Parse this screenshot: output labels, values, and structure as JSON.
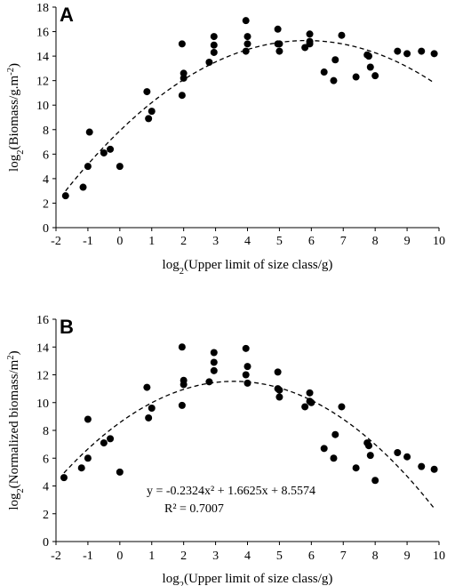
{
  "chart_data": [
    {
      "type": "scatter",
      "panel_label": "A",
      "xlabel": "log2(Upper limit of size class/g)",
      "ylabel": "log2(Biomass/g.m-2)",
      "xlim": [
        -2,
        10
      ],
      "ylim": [
        0,
        18
      ],
      "x_ticks": [
        -2,
        -1,
        0,
        1,
        2,
        3,
        4,
        5,
        6,
        7,
        8,
        9,
        10
      ],
      "y_ticks": [
        0,
        2,
        4,
        6,
        8,
        10,
        12,
        14,
        16,
        18
      ],
      "trendline": {
        "style": "dashed",
        "kind": "quadratic"
      },
      "points": [
        [
          -1.7,
          2.6
        ],
        [
          -1.15,
          3.3
        ],
        [
          -1.0,
          5.0
        ],
        [
          -0.95,
          7.8
        ],
        [
          -0.5,
          6.1
        ],
        [
          -0.3,
          6.4
        ],
        [
          0.0,
          5.0
        ],
        [
          0.85,
          11.1
        ],
        [
          0.9,
          8.9
        ],
        [
          1.0,
          9.5
        ],
        [
          1.95,
          15.0
        ],
        [
          1.95,
          10.8
        ],
        [
          2.0,
          12.2
        ],
        [
          2.0,
          12.6
        ],
        [
          2.8,
          13.5
        ],
        [
          2.95,
          14.3
        ],
        [
          2.95,
          14.9
        ],
        [
          2.95,
          15.6
        ],
        [
          3.95,
          16.9
        ],
        [
          3.95,
          14.4
        ],
        [
          4.0,
          15.0
        ],
        [
          4.0,
          15.6
        ],
        [
          4.95,
          16.2
        ],
        [
          4.95,
          15.0
        ],
        [
          5.0,
          14.4
        ],
        [
          5.0,
          15.0
        ],
        [
          5.8,
          14.7
        ],
        [
          5.95,
          15.8
        ],
        [
          5.95,
          15.0
        ],
        [
          5.95,
          15.2
        ],
        [
          6.4,
          12.7
        ],
        [
          6.7,
          12.0
        ],
        [
          6.75,
          13.7
        ],
        [
          6.95,
          15.7
        ],
        [
          7.4,
          12.3
        ],
        [
          7.75,
          14.1
        ],
        [
          7.8,
          14.0
        ],
        [
          7.85,
          13.1
        ],
        [
          8.0,
          12.4
        ],
        [
          8.7,
          14.4
        ],
        [
          9.0,
          14.2
        ],
        [
          9.45,
          14.4
        ],
        [
          9.85,
          14.2
        ]
      ]
    },
    {
      "type": "scatter",
      "panel_label": "B",
      "xlabel": "log2(Upper limit of size class/g)",
      "ylabel": "log2(Normalized biomass/m2)",
      "xlim": [
        -2,
        10
      ],
      "ylim": [
        0,
        16
      ],
      "x_ticks": [
        -2,
        -1,
        0,
        1,
        2,
        3,
        4,
        5,
        6,
        7,
        8,
        9,
        10
      ],
      "y_ticks": [
        0,
        2,
        4,
        6,
        8,
        10,
        12,
        14,
        16
      ],
      "trendline": {
        "style": "dashed",
        "kind": "quadratic",
        "a": -0.2324,
        "b": 1.6625,
        "c": 8.5574
      },
      "equation": "y = -0.2324x² + 1.6625x + 8.5574",
      "r_squared": "R² = 0.7007",
      "points": [
        [
          -1.75,
          4.6
        ],
        [
          -1.2,
          5.3
        ],
        [
          -1.0,
          6.0
        ],
        [
          -1.0,
          8.8
        ],
        [
          -0.5,
          7.1
        ],
        [
          -0.3,
          7.4
        ],
        [
          0.0,
          5.0
        ],
        [
          0.85,
          11.1
        ],
        [
          0.9,
          8.9
        ],
        [
          1.0,
          9.6
        ],
        [
          1.95,
          14.0
        ],
        [
          1.95,
          9.8
        ],
        [
          2.0,
          11.3
        ],
        [
          2.0,
          11.6
        ],
        [
          2.8,
          11.5
        ],
        [
          2.95,
          12.3
        ],
        [
          2.95,
          12.9
        ],
        [
          2.95,
          13.6
        ],
        [
          3.95,
          13.9
        ],
        [
          3.95,
          12.0
        ],
        [
          4.0,
          12.6
        ],
        [
          4.0,
          11.4
        ],
        [
          4.95,
          12.2
        ],
        [
          4.95,
          11.0
        ],
        [
          5.0,
          10.4
        ],
        [
          5.0,
          10.9
        ],
        [
          5.8,
          9.7
        ],
        [
          5.95,
          10.7
        ],
        [
          5.95,
          10.1
        ],
        [
          6.0,
          10.0
        ],
        [
          6.4,
          6.7
        ],
        [
          6.7,
          6.0
        ],
        [
          6.75,
          7.7
        ],
        [
          6.95,
          9.7
        ],
        [
          7.4,
          5.3
        ],
        [
          7.75,
          7.1
        ],
        [
          7.8,
          6.9
        ],
        [
          7.85,
          6.2
        ],
        [
          8.0,
          4.4
        ],
        [
          8.7,
          6.4
        ],
        [
          9.0,
          6.1
        ],
        [
          9.45,
          5.4
        ],
        [
          9.85,
          5.2
        ]
      ]
    }
  ]
}
